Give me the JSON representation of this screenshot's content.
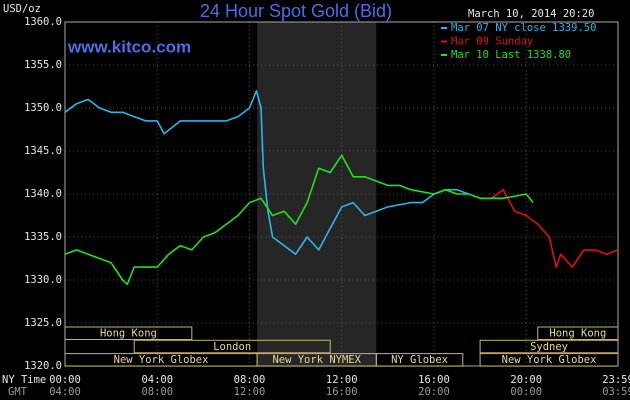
{
  "chart_data": {
    "type": "line",
    "title": "24 Hour Spot Gold (Bid)",
    "timestamp": "March 10, 2014 20:20",
    "watermark": "www.kitco.com",
    "y_label": "USD/oz",
    "x_label": "NY Time",
    "x2_label": "GMT",
    "ylim": [
      1320,
      1360
    ],
    "yticks": [
      {
        "value": 1320,
        "label": "1320.0"
      },
      {
        "value": 1325,
        "label": "1325.0"
      },
      {
        "value": 1330,
        "label": "1330.0"
      },
      {
        "value": 1335,
        "label": "1335.0"
      },
      {
        "value": 1340,
        "label": "1340.0"
      },
      {
        "value": 1345,
        "label": "1345.0"
      },
      {
        "value": 1350,
        "label": "1350.0"
      },
      {
        "value": 1355,
        "label": "1355.0"
      },
      {
        "value": 1360,
        "label": "1360.0"
      }
    ],
    "xlim": [
      0,
      23.98
    ],
    "xticks": [
      {
        "value": 0,
        "label": "00:00"
      },
      {
        "value": 4,
        "label": "04:00"
      },
      {
        "value": 8,
        "label": "08:00"
      },
      {
        "value": 12,
        "label": "12:00"
      },
      {
        "value": 16,
        "label": "16:00"
      },
      {
        "value": 20,
        "label": "20:00"
      },
      {
        "value": 23.98,
        "label": "23:59"
      }
    ],
    "x2ticks": [
      {
        "value": 0,
        "label": "04:00"
      },
      {
        "value": 4,
        "label": "08:00"
      },
      {
        "value": 8,
        "label": "12:00"
      },
      {
        "value": 12,
        "label": "16:00"
      },
      {
        "value": 16,
        "label": "20:00"
      },
      {
        "value": 20,
        "label": "00:00"
      },
      {
        "value": 23.98,
        "label": "03:59"
      }
    ],
    "grid": true,
    "legend": "top-right",
    "highlight": [
      8.33,
      13.5
    ],
    "sessions": [
      {
        "label": "Hong Kong",
        "start": 0,
        "end": 5.5
      },
      {
        "label": "London",
        "start": 3,
        "end": 11.5
      },
      {
        "label": "New York Globex",
        "start": 0,
        "end": 8.33
      },
      {
        "label": "New York NYMEX",
        "start": 8.33,
        "end": 13.5
      },
      {
        "label": "NY Globex",
        "start": 13.5,
        "end": 17.25
      },
      {
        "label": "Hong Kong",
        "start": 20.5,
        "end": 23.98
      },
      {
        "label": "Sydney",
        "start": 18,
        "end": 23.98
      },
      {
        "label": "New York Globex",
        "start": 18,
        "end": 23.98
      }
    ],
    "series": [
      {
        "name": "Mar 07 NY close 1339.50",
        "color": "#2cb6ea",
        "x": [
          0,
          0.5,
          1,
          1.5,
          2,
          2.5,
          3,
          3.5,
          4,
          4.3,
          5,
          6,
          7,
          7.5,
          8,
          8.3,
          8.5,
          8.6,
          8.8,
          9,
          9.5,
          10,
          10.5,
          11,
          11.5,
          12,
          12.5,
          13,
          13.5,
          14,
          15,
          15.5,
          16,
          16.5,
          17,
          17.5
        ],
        "values": [
          1349.5,
          1350.5,
          1351,
          1350,
          1349.5,
          1349.5,
          1349,
          1348.5,
          1348.5,
          1347,
          1348.5,
          1348.5,
          1348.5,
          1349,
          1350,
          1352,
          1350,
          1343,
          1338,
          1335,
          1334,
          1333,
          1335,
          1333.5,
          1336,
          1338.5,
          1339,
          1337.5,
          1338,
          1338.5,
          1339,
          1339,
          1340,
          1340.5,
          1340.5,
          1340
        ]
      },
      {
        "name": "Mar 09 Sunday",
        "color": "#e01010",
        "x": [
          18,
          18.5,
          19,
          19.5,
          20,
          20.5,
          21,
          21.3,
          21.5,
          22,
          22.5,
          23,
          23.5,
          23.98
        ],
        "values": [
          1339.5,
          1339.5,
          1340.5,
          1338,
          1337.5,
          1336.5,
          1335,
          1331.5,
          1333,
          1331.5,
          1333.5,
          1333.5,
          1333,
          1333.5
        ]
      },
      {
        "name": "Mar 10 Last 1338.80",
        "color": "#22e022",
        "x": [
          0,
          0.5,
          1,
          1.5,
          2,
          2.5,
          2.7,
          3,
          3.5,
          4,
          4.5,
          5,
          5.5,
          6,
          6.5,
          7,
          7.5,
          8,
          8.5,
          9,
          9.5,
          10,
          10.5,
          11,
          11.5,
          12,
          12.5,
          13,
          13.5,
          14,
          14.5,
          15,
          16,
          16.5,
          17,
          17.5,
          18,
          19,
          20,
          20.3
        ],
        "values": [
          1333,
          1333.5,
          1333,
          1332.5,
          1332,
          1330,
          1329.5,
          1331.5,
          1331.5,
          1331.5,
          1333,
          1334,
          1333.5,
          1335,
          1335.5,
          1336.5,
          1337.5,
          1339,
          1339.5,
          1337.5,
          1338,
          1336.5,
          1339,
          1343,
          1342.5,
          1344.5,
          1342,
          1342,
          1341.5,
          1341,
          1341,
          1340.5,
          1340,
          1340.5,
          1340,
          1340,
          1339.5,
          1339.5,
          1340,
          1339
        ]
      }
    ]
  }
}
